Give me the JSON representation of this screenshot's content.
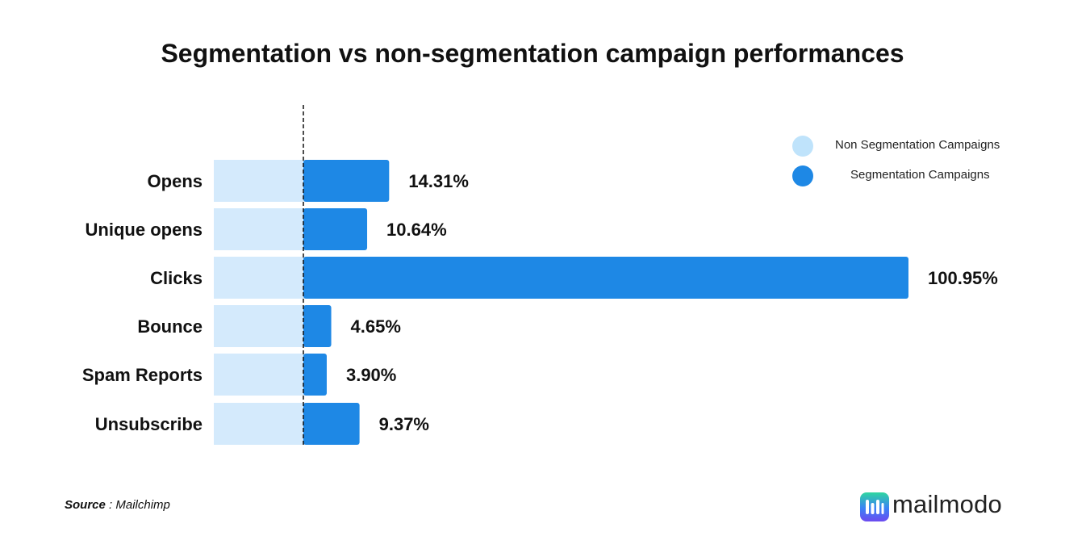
{
  "colors": {
    "non_segmentation": "#d4eafc",
    "segmentation": "#1e88e5",
    "legend_non_segmentation": "#bfe3fb",
    "text": "#111111"
  },
  "chart_data": {
    "type": "bar",
    "orientation": "horizontal",
    "title": "Segmentation vs non-segmentation campaign performances",
    "categories": [
      "Opens",
      "Unique opens",
      "Clicks",
      "Bounce",
      "Spam Reports",
      "Unsubscribe"
    ],
    "series": [
      {
        "name": "Non Segmentation Campaigns",
        "role": "baseline",
        "values": [
          0,
          0,
          0,
          0,
          0,
          0
        ]
      },
      {
        "name": "Segmentation Campaigns",
        "values": [
          14.31,
          10.64,
          100.95,
          4.65,
          3.9,
          9.37
        ],
        "labels": [
          "14.31%",
          "10.64%",
          "100.95%",
          "4.65%",
          "3.90%",
          "9.37%"
        ]
      }
    ],
    "baseline_marker": "dashed vertical line at 0",
    "xlim": [
      0,
      100.95
    ],
    "grid": false,
    "legend_position": "top-right"
  },
  "legend": {
    "items": [
      {
        "label": "Non Segmentation Campaigns",
        "color": "#bfe3fb"
      },
      {
        "label": "Segmentation Campaigns",
        "color": "#1e88e5"
      }
    ]
  },
  "footer": {
    "source_label": "Source",
    "source_separator": " : ",
    "source_value": "Mailchimp",
    "brand": "mailmodo"
  }
}
